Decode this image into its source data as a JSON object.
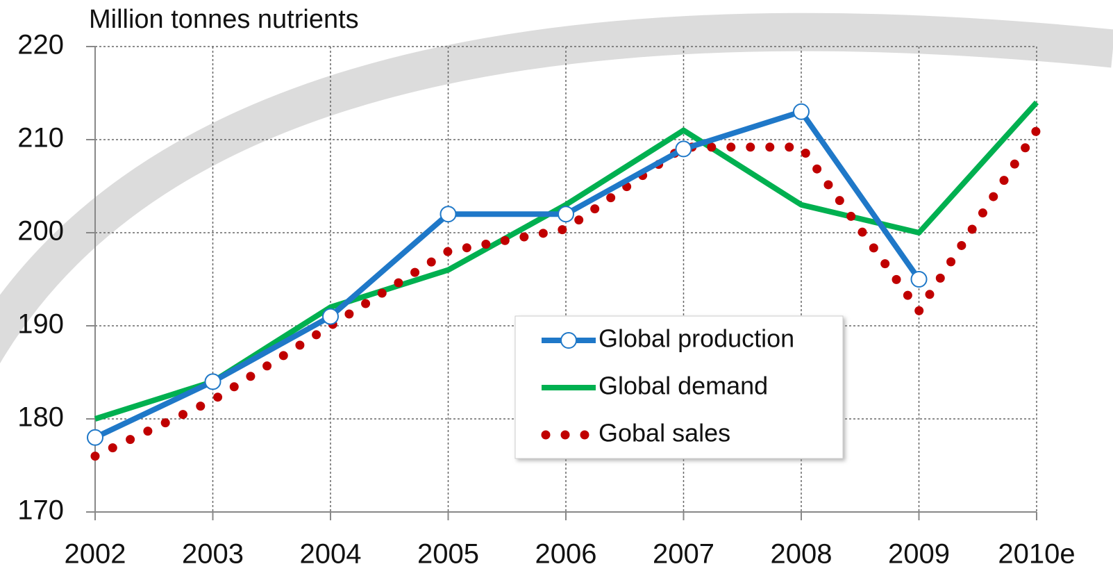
{
  "chart_data": {
    "type": "line",
    "y_axis_label": "Million tonnes nutrients",
    "categories": [
      "2002",
      "2003",
      "2004",
      "2005",
      "2006",
      "2007",
      "2008",
      "2009",
      "2010e"
    ],
    "ylim": [
      170,
      220
    ],
    "yticks": [
      170,
      180,
      190,
      200,
      210,
      220
    ],
    "grid": true,
    "legend": "center",
    "series": [
      {
        "name": "Global production",
        "color": "#1f78c8",
        "style": "solid",
        "marker": "circle",
        "values": [
          178,
          184,
          191,
          202,
          202,
          209,
          213,
          195,
          null
        ]
      },
      {
        "name": "Global demand",
        "color": "#00b050",
        "style": "solid",
        "values": [
          180,
          184,
          192,
          196,
          203,
          211,
          203,
          200,
          214
        ]
      },
      {
        "name": "Gobal sales",
        "color": "#c00000",
        "style": "dotted",
        "values": [
          176,
          182,
          190,
          198,
          200.4,
          209.2,
          209.2,
          191.6,
          211
        ]
      }
    ]
  }
}
